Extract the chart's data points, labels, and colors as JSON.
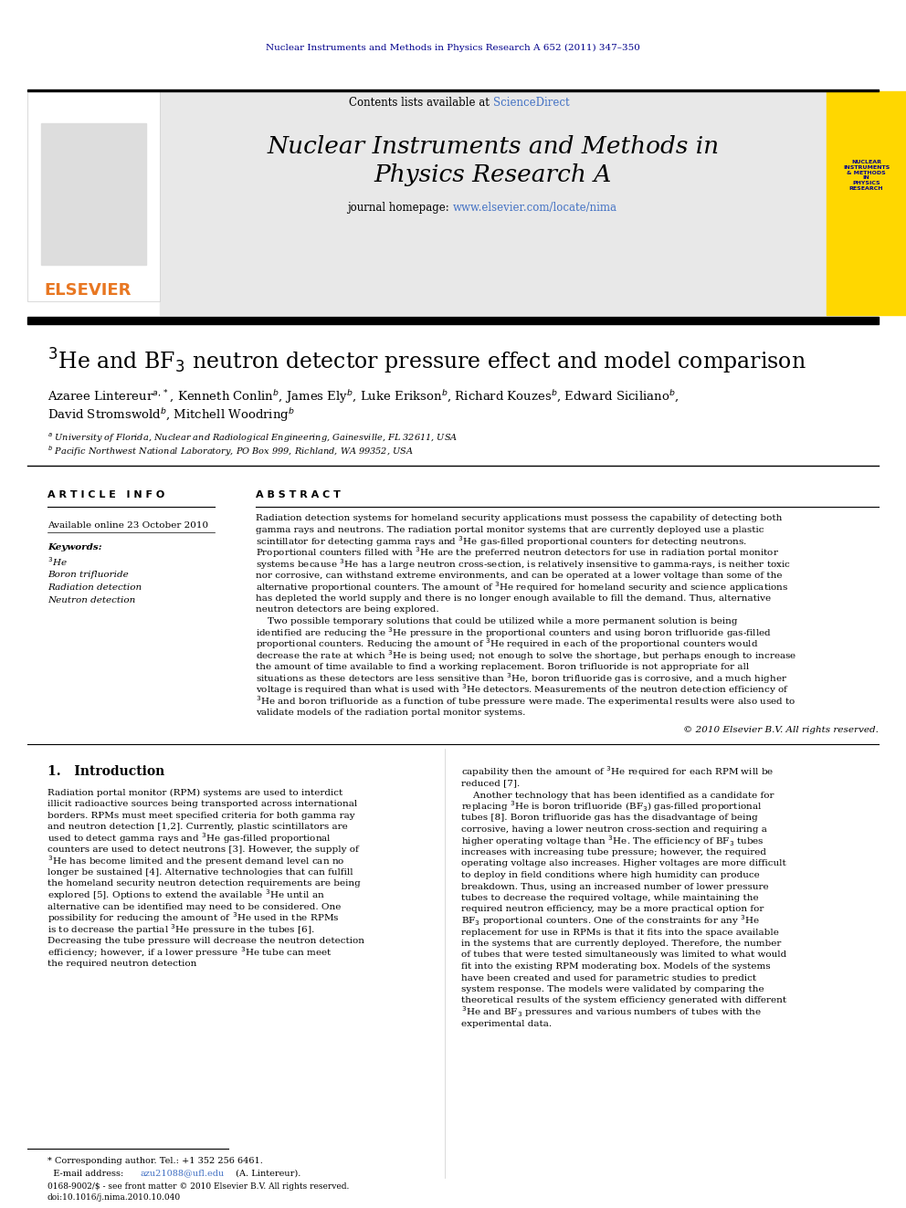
{
  "page_background": "#ffffff",
  "top_journal_line": "Nuclear Instruments and Methods in Physics Research A 652 (2011) 347–350",
  "top_journal_color": "#00008B",
  "elsevier_text": "ELSEVIER",
  "elsevier_color": "#E87722",
  "sciencedirect_color": "#4472C4",
  "journal_title_line1": "Nuclear Instruments and Methods in",
  "journal_title_line2": "Physics Research A",
  "journal_url_color": "#4472C4",
  "yellow_box_color": "#FFD700",
  "header_gray_color": "#E8E8E8",
  "copyright_text": "© 2010 Elsevier B.V. All rights reserved.",
  "footnote_star": "* Corresponding author. Tel.: +1 352 256 6461.",
  "footnote_email": "azu21088@ufl.edu",
  "footnote_email_suffix": " (A. Lintereur).",
  "footnote_issn": "0168-9002/$ - see front matter © 2010 Elsevier B.V. All rights reserved.",
  "footnote_doi": "doi:10.1016/j.nima.2010.10.040"
}
